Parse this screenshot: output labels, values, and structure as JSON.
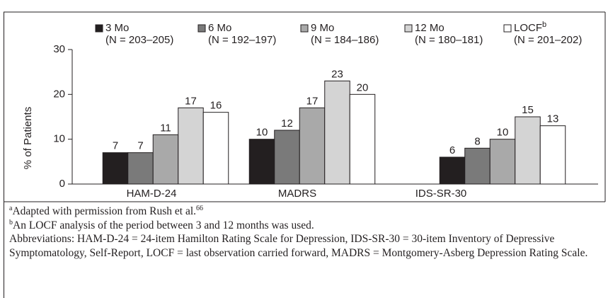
{
  "chart_data": {
    "type": "bar",
    "categories": [
      "HAM-D-24",
      "MADRS",
      "IDS-SR-30"
    ],
    "series": [
      {
        "name": "3 Mo",
        "n": "(N = 203–205)",
        "color": "#231f20",
        "values": [
          7,
          10,
          6
        ]
      },
      {
        "name": "6 Mo",
        "n": "(N = 192–197)",
        "color": "#7a7a7a",
        "values": [
          7,
          12,
          8
        ]
      },
      {
        "name": "9 Mo",
        "n": "(N = 184–186)",
        "color": "#a9a9a9",
        "values": [
          11,
          17,
          10
        ]
      },
      {
        "name": "12 Mo",
        "n": "(N = 180–181)",
        "color": "#d4d4d4",
        "values": [
          17,
          23,
          15
        ]
      },
      {
        "name": "LOCF",
        "sup": "b",
        "n": "(N = 201–202)",
        "color": "#ffffff",
        "values": [
          16,
          20,
          13
        ]
      }
    ],
    "ylabel": "% of Patients",
    "ylim": [
      0,
      30
    ],
    "yticks": [
      0,
      10,
      20,
      30
    ]
  },
  "footnotes": [
    {
      "mark": "a",
      "text": "Adapted with permission from Rush et al.",
      "ref": "66"
    },
    {
      "mark": "b",
      "text": "An LOCF analysis of the period between 3 and 12 months was used."
    },
    {
      "text": "Abbreviations: HAM-D-24 = 24-item Hamilton Rating Scale for Depression, IDS-SR-30 = 30-item Inventory of Depressive Symptomatology, Self-Report, LOCF = last observation carried forward, MADRS = Montgomery-Asberg Depression Rating Scale."
    }
  ]
}
